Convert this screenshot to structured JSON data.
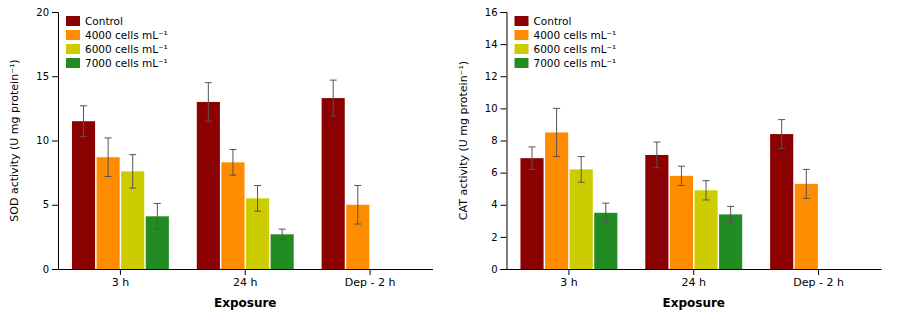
{
  "chart_data": [
    {
      "type": "bar",
      "xlabel": "Exposure",
      "ylabel": "SOD activity (U mg protein⁻¹)",
      "categories": [
        "3 h",
        "24 h",
        "Dep - 2 h"
      ],
      "series": [
        {
          "name": "Control",
          "color": "#8B0000",
          "values": [
            11.5,
            13.0,
            13.3
          ],
          "errors": [
            1.2,
            1.5,
            1.4
          ]
        },
        {
          "name": "4000 cells mL⁻¹",
          "color": "#FF8C00",
          "values": [
            8.7,
            8.3,
            5.0
          ],
          "errors": [
            1.5,
            1.0,
            1.5
          ]
        },
        {
          "name": "6000 cells mL⁻¹",
          "color": "#CCCC00",
          "values": [
            7.6,
            5.5,
            null
          ],
          "errors": [
            1.3,
            1.0,
            null
          ]
        },
        {
          "name": "7000 cells mL⁻¹",
          "color": "#228B22",
          "values": [
            4.1,
            2.7,
            null
          ],
          "errors": [
            1.0,
            0.4,
            null
          ]
        }
      ],
      "ylim": [
        0,
        20
      ],
      "yticks": [
        0,
        5,
        10,
        15,
        20
      ],
      "grid": false,
      "legend": "upper left"
    },
    {
      "type": "bar",
      "xlabel": "Exposure",
      "ylabel": "CAT activity (U mg protein⁻¹)",
      "categories": [
        "3 h",
        "24 h",
        "Dep - 2 h"
      ],
      "series": [
        {
          "name": "Control",
          "color": "#8B0000",
          "values": [
            6.9,
            7.1,
            8.4
          ],
          "errors": [
            0.7,
            0.8,
            0.9
          ]
        },
        {
          "name": "4000 cells mL⁻¹",
          "color": "#FF8C00",
          "values": [
            8.5,
            5.8,
            5.3
          ],
          "errors": [
            1.5,
            0.6,
            0.9
          ]
        },
        {
          "name": "6000 cells mL⁻¹",
          "color": "#CCCC00",
          "values": [
            6.2,
            4.9,
            null
          ],
          "errors": [
            0.8,
            0.6,
            null
          ]
        },
        {
          "name": "7000 cells mL⁻¹",
          "color": "#228B22",
          "values": [
            3.5,
            3.4,
            null
          ],
          "errors": [
            0.6,
            0.5,
            null
          ]
        }
      ],
      "ylim": [
        0,
        16
      ],
      "yticks": [
        0,
        2,
        4,
        6,
        8,
        10,
        12,
        14,
        16
      ],
      "grid": false,
      "legend": "upper left"
    }
  ]
}
